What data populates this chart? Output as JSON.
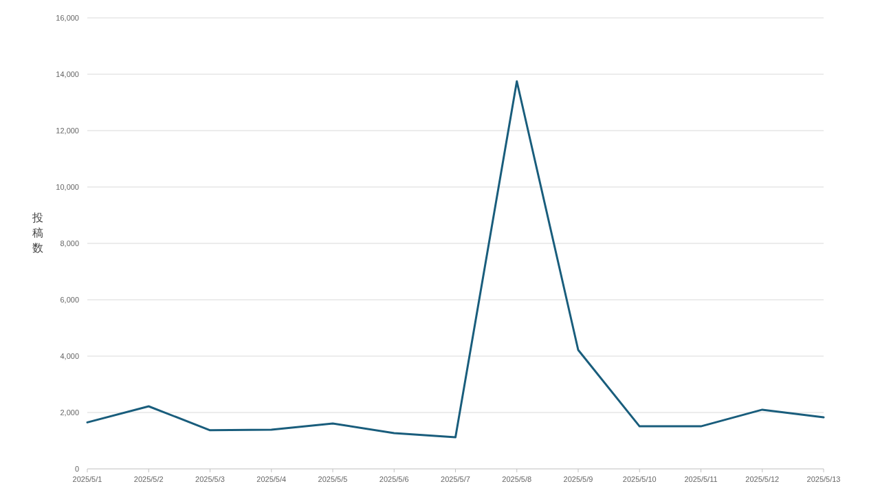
{
  "chart_data": {
    "type": "line",
    "ylabel": "投稿数",
    "categories": [
      "2025/5/1",
      "2025/5/2",
      "2025/5/3",
      "2025/5/4",
      "2025/5/5",
      "2025/5/6",
      "2025/5/7",
      "2025/5/8",
      "2025/5/9",
      "2025/5/10",
      "2025/5/11",
      "2025/5/12",
      "2025/5/13"
    ],
    "series": [
      {
        "color": "#195d7c",
        "values": [
          1650,
          2220,
          1370,
          1390,
          1610,
          1270,
          1120,
          13750,
          4220,
          1510,
          1510,
          2100,
          1830
        ]
      }
    ],
    "ylim": [
      0,
      16000
    ],
    "yticks": [
      0,
      {
        "value": 2000,
        "label": "2,000"
      },
      {
        "value": 4000,
        "label": "4,000"
      },
      {
        "value": 6000,
        "label": "6,000"
      },
      {
        "value": 8000,
        "label": "8,000"
      },
      {
        "value": 10000,
        "label": "10,000"
      },
      {
        "value": 12000,
        "label": "12,000"
      },
      {
        "value": 14000,
        "label": "14,000"
      },
      {
        "value": 16000,
        "label": "16,000"
      }
    ],
    "grid": "y"
  }
}
